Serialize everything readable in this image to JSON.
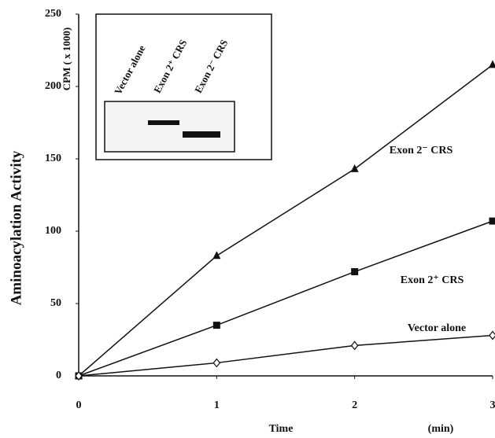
{
  "chart_data": {
    "type": "line",
    "y_label": "Aminoacylation Activity",
    "y_unit": "CPM  ( x 1000)",
    "x_label": "Time",
    "x_unit": "(min)",
    "x": [
      0,
      1,
      2,
      3
    ],
    "xlim": [
      0,
      3
    ],
    "xticks": [
      0,
      1,
      2,
      3
    ],
    "ylim": [
      0,
      250
    ],
    "yticks": [
      0,
      50,
      100,
      150,
      200,
      250
    ],
    "series": [
      {
        "name": "Exon 2⁻ CRS",
        "color": "#111111",
        "marker": "triangle",
        "values": [
          0,
          83,
          143,
          215
        ]
      },
      {
        "name": "Exon 2⁺ CRS",
        "color": "#111111",
        "marker": "square",
        "values": [
          0,
          35,
          72,
          107
        ]
      },
      {
        "name": "Vector alone",
        "color": "#111111",
        "marker": "diamond",
        "values": [
          0,
          9,
          21,
          28
        ]
      }
    ]
  },
  "inset": {
    "labels": [
      "Vector alone",
      "Exon 2⁺ CRS",
      "Exon 2⁻ CRS"
    ]
  }
}
